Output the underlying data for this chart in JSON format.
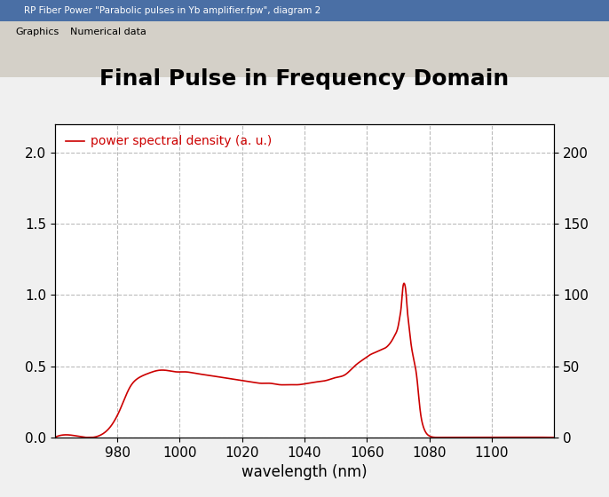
{
  "title": "Final Pulse in Frequency Domain",
  "xlabel": "wavelength (nm)",
  "ylabel_left": "",
  "ylabel_right": "",
  "legend_label": "power spectral density (a. u.)",
  "xlim": [
    960,
    1120
  ],
  "ylim_left": [
    0,
    2.2
  ],
  "ylim_right": [
    0,
    220
  ],
  "yticks_left": [
    0,
    0.5,
    1.0,
    1.5,
    2.0
  ],
  "yticks_right": [
    0,
    50,
    100,
    150,
    200
  ],
  "xticks": [
    980,
    1000,
    1020,
    1040,
    1060,
    1080,
    1100
  ],
  "line_color": "#cc0000",
  "grid_color": "#aaaaaa",
  "bg_color": "#f0f0f0",
  "plot_bg_color": "#ffffff",
  "title_fontsize": 18,
  "label_fontsize": 12,
  "tick_fontsize": 11
}
